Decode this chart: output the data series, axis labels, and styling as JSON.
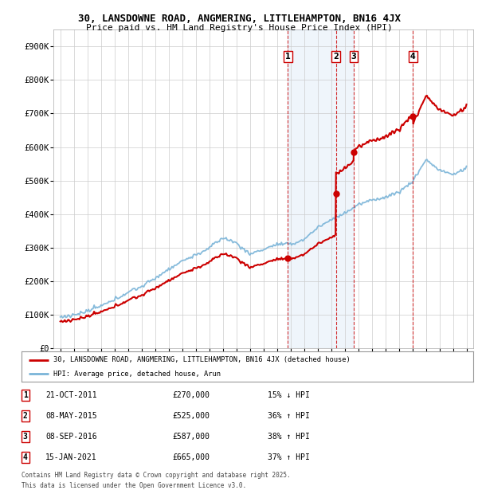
{
  "title": "30, LANSDOWNE ROAD, ANGMERING, LITTLEHAMPTON, BN16 4JX",
  "subtitle": "Price paid vs. HM Land Registry's House Price Index (HPI)",
  "legend_label_red": "30, LANSDOWNE ROAD, ANGMERING, LITTLEHAMPTON, BN16 4JX (detached house)",
  "legend_label_blue": "HPI: Average price, detached house, Arun",
  "footer_line1": "Contains HM Land Registry data © Crown copyright and database right 2025.",
  "footer_line2": "This data is licensed under the Open Government Licence v3.0.",
  "transactions": [
    {
      "num": 1,
      "date": "21-OCT-2011",
      "price": 270000,
      "pct": "15%",
      "dir": "↓",
      "year_x": 2011.8
    },
    {
      "num": 2,
      "date": "08-MAY-2015",
      "price": 525000,
      "pct": "36%",
      "dir": "↑",
      "year_x": 2015.35
    },
    {
      "num": 3,
      "date": "08-SEP-2016",
      "price": 587000,
      "pct": "38%",
      "dir": "↑",
      "year_x": 2016.68
    },
    {
      "num": 4,
      "date": "15-JAN-2021",
      "price": 665000,
      "pct": "37%",
      "dir": "↑",
      "year_x": 2021.04
    }
  ],
  "hpi_color": "#7ab4d8",
  "price_color": "#cc0000",
  "shade_color": "#ddeeff",
  "background_color": "#ffffff",
  "grid_color": "#cccccc",
  "ylim": [
    0,
    950000
  ],
  "xlim": [
    1994.5,
    2025.5
  ],
  "yticks": [
    0,
    100000,
    200000,
    300000,
    400000,
    500000,
    600000,
    700000,
    800000,
    900000
  ],
  "ytick_labels": [
    "£0",
    "£100K",
    "£200K",
    "£300K",
    "£400K",
    "£500K",
    "£600K",
    "£700K",
    "£800K",
    "£900K"
  ],
  "xticks": [
    1995,
    1996,
    1997,
    1998,
    1999,
    2000,
    2001,
    2002,
    2003,
    2004,
    2005,
    2006,
    2007,
    2008,
    2009,
    2010,
    2011,
    2012,
    2013,
    2014,
    2015,
    2016,
    2017,
    2018,
    2019,
    2020,
    2021,
    2022,
    2023,
    2024,
    2025
  ]
}
